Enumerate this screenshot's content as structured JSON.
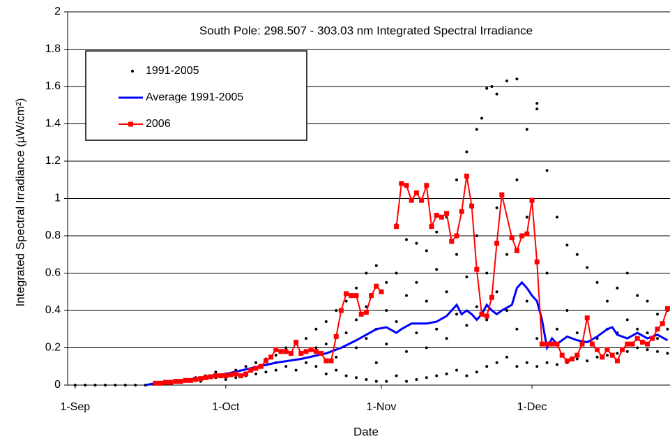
{
  "chart_data": {
    "type": "scatter-line",
    "title": "South Pole: 298.507 - 303.03 nm Integrated Spectral Irradiance",
    "x_label": "Date",
    "y_label": "Integrated Spectral Irradiance (µW/cm²)",
    "xlim": [
      -1.5,
      118.5
    ],
    "xticks": [
      {
        "value": 0,
        "label": "1-Sep"
      },
      {
        "value": 30,
        "label": "1-Oct"
      },
      {
        "value": 61,
        "label": "1-Nov"
      },
      {
        "value": 91,
        "label": "1-Dec"
      }
    ],
    "ylim": [
      0,
      2
    ],
    "yticks": [
      0,
      0.2,
      0.4,
      0.6,
      0.8,
      1,
      1.2,
      1.4,
      1.6,
      1.8,
      2
    ],
    "grid": true,
    "series": [
      {
        "name": "1991-2005",
        "style": "dots",
        "color": "#000000",
        "x": [
          0,
          2,
          4,
          6,
          8,
          10,
          12,
          14,
          16,
          18,
          20,
          22,
          24,
          25,
          26,
          28,
          28,
          30,
          30,
          32,
          32,
          34,
          34,
          36,
          36,
          38,
          38,
          40,
          40,
          40,
          42,
          42,
          44,
          44,
          46,
          46,
          46,
          48,
          48,
          48,
          50,
          50,
          50,
          52,
          52,
          52,
          54,
          54,
          54,
          56,
          56,
          56,
          56,
          58,
          58,
          58,
          58,
          60,
          60,
          60,
          60,
          62,
          62,
          62,
          62,
          64,
          64,
          64,
          64,
          66,
          66,
          66,
          66,
          68,
          68,
          68,
          68,
          70,
          70,
          70,
          70,
          72,
          72,
          72,
          72,
          74,
          74,
          74,
          74,
          76,
          76,
          76,
          76,
          78,
          78,
          78,
          78,
          80,
          80,
          80,
          80,
          81,
          82,
          82,
          82,
          82,
          83,
          84,
          84,
          84,
          84,
          86,
          86,
          86,
          86,
          88,
          88,
          88,
          88,
          90,
          90,
          90,
          90,
          92,
          92,
          92,
          92,
          94,
          94,
          94,
          96,
          96,
          96,
          98,
          98,
          98,
          100,
          100,
          100,
          102,
          102,
          102,
          104,
          104,
          104,
          106,
          106,
          106,
          108,
          108,
          108,
          110,
          110,
          110,
          112,
          112,
          112,
          114,
          114,
          114,
          116,
          116,
          116,
          118,
          118,
          118
        ],
        "values": [
          0,
          0,
          0,
          0,
          0,
          0,
          0,
          0,
          0.01,
          0.02,
          0.02,
          0.03,
          0.04,
          0.02,
          0.05,
          0.04,
          0.07,
          0.06,
          0.03,
          0.08,
          0.04,
          0.1,
          0.05,
          0.12,
          0.06,
          0.14,
          0.07,
          0.16,
          0.08,
          0.12,
          0.2,
          0.1,
          0.22,
          0.08,
          0.25,
          0.12,
          0.18,
          0.3,
          0.1,
          0.2,
          0.34,
          0.06,
          0.22,
          0.4,
          0.08,
          0.15,
          0.45,
          0.05,
          0.28,
          0.52,
          0.04,
          0.2,
          0.35,
          0.6,
          0.03,
          0.25,
          0.42,
          0.64,
          0.02,
          0.3,
          0.12,
          0.55,
          0.02,
          0.22,
          0.4,
          0.86,
          0.05,
          0.34,
          0.6,
          0.78,
          0.02,
          0.18,
          0.48,
          0.76,
          0.03,
          0.28,
          0.55,
          0.72,
          0.04,
          0.2,
          0.45,
          0.82,
          0.05,
          0.3,
          0.62,
          0.9,
          0.06,
          0.25,
          0.5,
          1.1,
          0.08,
          0.38,
          0.7,
          1.25,
          0.05,
          0.32,
          0.58,
          1.37,
          0.07,
          0.42,
          0.8,
          1.43,
          1.59,
          0.1,
          0.35,
          0.6,
          1.6,
          1.56,
          0.12,
          0.5,
          0.95,
          1.63,
          0.15,
          0.4,
          0.7,
          1.64,
          0.1,
          0.3,
          1.1,
          1.37,
          0.12,
          0.45,
          0.9,
          1.48,
          1.51,
          0.1,
          0.25,
          1.15,
          0.12,
          0.6,
          0.9,
          0.11,
          0.3,
          0.75,
          0.12,
          0.4,
          0.7,
          0.14,
          0.28,
          0.63,
          0.13,
          0.35,
          0.55,
          0.15,
          0.25,
          0.45,
          0.16,
          0.3,
          0.52,
          0.17,
          0.28,
          0.6,
          0.18,
          0.35,
          0.48,
          0.2,
          0.3,
          0.45,
          0.19,
          0.28,
          0.38,
          0.18,
          0.25,
          0.4,
          0.17,
          0.3
        ]
      },
      {
        "name": "Average 1991-2005",
        "style": "line",
        "color": "#0000ff",
        "x": [
          14,
          16,
          20,
          25,
          30,
          35,
          40,
          45,
          50,
          53,
          56,
          58,
          60,
          62,
          64,
          65,
          67,
          70,
          72,
          74,
          76,
          77,
          78,
          79,
          80,
          81,
          82,
          83,
          84,
          85,
          87,
          88,
          89,
          90,
          91,
          92,
          93,
          94,
          95,
          96,
          98,
          100,
          102,
          104,
          106,
          107,
          108,
          110,
          112,
          114,
          116,
          118
        ],
        "values": [
          0,
          0.01,
          0.02,
          0.04,
          0.06,
          0.09,
          0.12,
          0.14,
          0.17,
          0.2,
          0.24,
          0.27,
          0.3,
          0.31,
          0.28,
          0.3,
          0.33,
          0.33,
          0.34,
          0.37,
          0.43,
          0.38,
          0.4,
          0.38,
          0.35,
          0.38,
          0.43,
          0.4,
          0.38,
          0.4,
          0.43,
          0.52,
          0.55,
          0.52,
          0.48,
          0.45,
          0.35,
          0.2,
          0.25,
          0.22,
          0.26,
          0.24,
          0.23,
          0.26,
          0.3,
          0.31,
          0.27,
          0.25,
          0.28,
          0.25,
          0.27,
          0.24
        ]
      },
      {
        "name": "2006",
        "style": "line-markers",
        "color": "#ff0000",
        "x": [
          16,
          17,
          18,
          19,
          20,
          21,
          22,
          23,
          24,
          25,
          26,
          27,
          28,
          29,
          30,
          31,
          32,
          33,
          34,
          35,
          36,
          37,
          38,
          39,
          40,
          41,
          42,
          43,
          44,
          45,
          46,
          47,
          48,
          49,
          50,
          51,
          52,
          53,
          54,
          55,
          56,
          57,
          58,
          59,
          60,
          61,
          62,
          64,
          65,
          66,
          67,
          68,
          69,
          70,
          71,
          72,
          73,
          74,
          75,
          76,
          77,
          78,
          79,
          80,
          81,
          82,
          83,
          84,
          85,
          87,
          88,
          89,
          90,
          91,
          92,
          93,
          94,
          95,
          96,
          97,
          98,
          99,
          100,
          101,
          102,
          103,
          104,
          105,
          106,
          107,
          108,
          109,
          110,
          111,
          112,
          113,
          114,
          115,
          116,
          117,
          118
        ],
        "values": [
          0.01,
          0.01,
          0.015,
          0.015,
          0.02,
          0.02,
          0.025,
          0.025,
          0.03,
          0.035,
          0.04,
          0.045,
          0.05,
          0.05,
          0.05,
          0.055,
          0.06,
          0.05,
          0.06,
          0.08,
          0.09,
          0.1,
          0.13,
          0.15,
          0.19,
          0.18,
          0.18,
          0.17,
          0.23,
          0.17,
          0.18,
          0.19,
          0.18,
          0.17,
          0.13,
          0.13,
          0.26,
          0.4,
          0.49,
          0.48,
          0.48,
          0.38,
          0.39,
          0.48,
          0.53,
          0.5,
          null,
          0.85,
          1.08,
          1.07,
          0.99,
          1.03,
          0.99,
          1.07,
          0.85,
          0.91,
          0.9,
          0.92,
          0.77,
          0.8,
          0.93,
          1.12,
          0.96,
          0.62,
          0.38,
          0.37,
          0.47,
          0.76,
          1.02,
          0.79,
          0.72,
          0.8,
          0.81,
          0.99,
          0.66,
          0.22,
          0.22,
          0.22,
          0.22,
          0.16,
          0.13,
          0.14,
          0.16,
          0.22,
          0.36,
          0.22,
          0.19,
          0.15,
          0.19,
          0.16,
          0.13,
          0.19,
          0.22,
          0.22,
          0.25,
          0.23,
          0.22,
          0.25,
          0.3,
          0.33,
          0.41
        ]
      }
    ]
  }
}
